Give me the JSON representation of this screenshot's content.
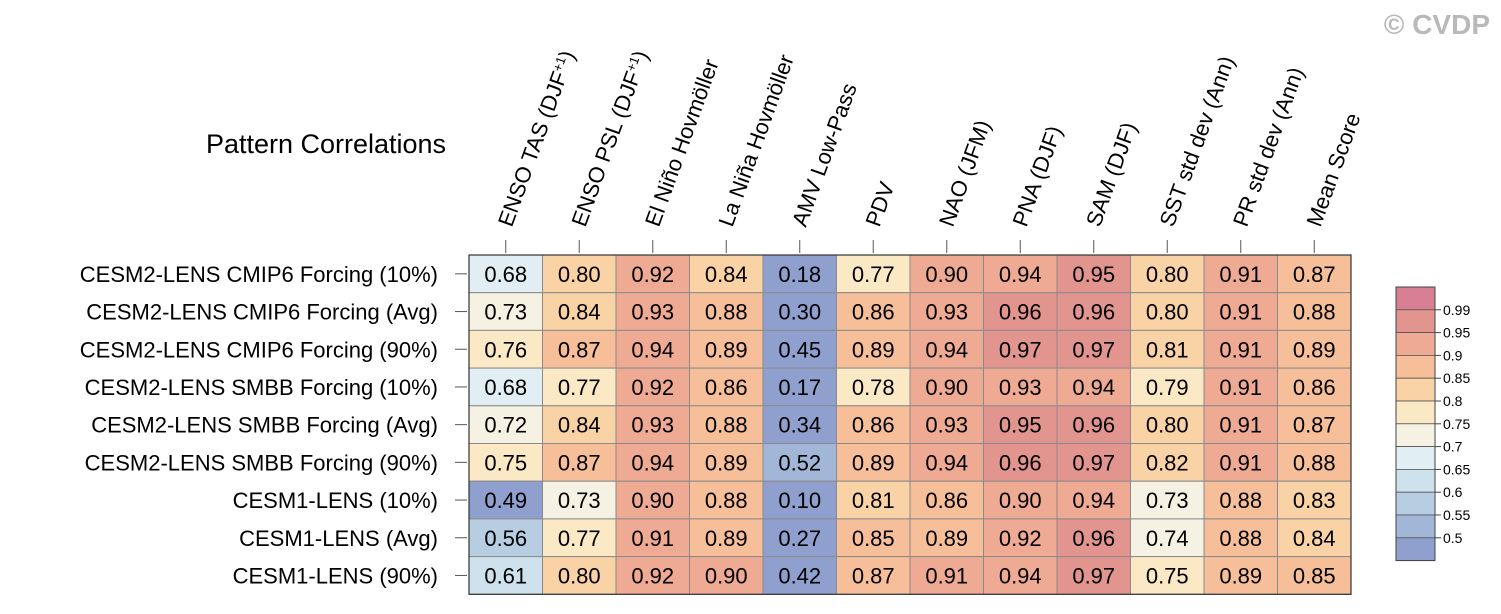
{
  "watermark": "© CVDP",
  "chart_data": {
    "type": "heatmap",
    "title": "Pattern Correlations",
    "columns": [
      "ENSO TAS (DJF+1)",
      "ENSO PSL (DJF+1)",
      "El Niño Hovmöller",
      "La Niña Hovmöller",
      "AMV Low-Pass",
      "PDV",
      "NAO (JFM)",
      "PNA (DJF)",
      "SAM (DJF)",
      "SST std dev (Ann)",
      "PR std dev (Ann)",
      "Mean Score"
    ],
    "rows": [
      "CESM2-LENS CMIP6 Forcing (10%)",
      "CESM2-LENS CMIP6 Forcing (Avg)",
      "CESM2-LENS CMIP6 Forcing (90%)",
      "CESM2-LENS SMBB Forcing (10%)",
      "CESM2-LENS SMBB Forcing (Avg)",
      "CESM2-LENS SMBB Forcing (90%)",
      "CESM1-LENS (10%)",
      "CESM1-LENS (Avg)",
      "CESM1-LENS (90%)"
    ],
    "values": [
      [
        "0.68",
        "0.80",
        "0.92",
        "0.84",
        "0.18",
        "0.77",
        "0.90",
        "0.94",
        "0.95",
        "0.80",
        "0.91",
        "0.87"
      ],
      [
        "0.73",
        "0.84",
        "0.93",
        "0.88",
        "0.30",
        "0.86",
        "0.93",
        "0.96",
        "0.96",
        "0.80",
        "0.91",
        "0.88"
      ],
      [
        "0.76",
        "0.87",
        "0.94",
        "0.89",
        "0.45",
        "0.89",
        "0.94",
        "0.97",
        "0.97",
        "0.81",
        "0.91",
        "0.89"
      ],
      [
        "0.68",
        "0.77",
        "0.92",
        "0.86",
        "0.17",
        "0.78",
        "0.90",
        "0.93",
        "0.94",
        "0.79",
        "0.91",
        "0.86"
      ],
      [
        "0.72",
        "0.84",
        "0.93",
        "0.88",
        "0.34",
        "0.86",
        "0.93",
        "0.95",
        "0.96",
        "0.80",
        "0.91",
        "0.87"
      ],
      [
        "0.75",
        "0.87",
        "0.94",
        "0.89",
        "0.52",
        "0.89",
        "0.94",
        "0.96",
        "0.97",
        "0.82",
        "0.91",
        "0.88"
      ],
      [
        "0.49",
        "0.73",
        "0.90",
        "0.88",
        "0.10",
        "0.81",
        "0.86",
        "0.90",
        "0.94",
        "0.73",
        "0.88",
        "0.83"
      ],
      [
        "0.56",
        "0.77",
        "0.91",
        "0.89",
        "0.27",
        "0.85",
        "0.89",
        "0.92",
        "0.96",
        "0.74",
        "0.88",
        "0.84"
      ],
      [
        "0.61",
        "0.80",
        "0.92",
        "0.90",
        "0.42",
        "0.87",
        "0.91",
        "0.94",
        "0.97",
        "0.75",
        "0.89",
        "0.85"
      ]
    ],
    "colorbar": {
      "levels": [
        "0.99",
        "0.95",
        "0.9",
        "0.85",
        "0.8",
        "0.75",
        "0.7",
        "0.65",
        "0.6",
        "0.55",
        "0.5"
      ],
      "bins": [
        {
          "min": 0.99,
          "color": "#d97f93"
        },
        {
          "min": 0.95,
          "color": "#e2958e"
        },
        {
          "min": 0.9,
          "color": "#efaa94"
        },
        {
          "min": 0.85,
          "color": "#f6bf9a"
        },
        {
          "min": 0.8,
          "color": "#f9d2a5"
        },
        {
          "min": 0.75,
          "color": "#fbe8c4"
        },
        {
          "min": 0.7,
          "color": "#f5f2e3"
        },
        {
          "min": 0.65,
          "color": "#e1eef3"
        },
        {
          "min": 0.6,
          "color": "#cde2ec"
        },
        {
          "min": 0.55,
          "color": "#b6cde2"
        },
        {
          "min": 0.5,
          "color": "#a2b6d8"
        },
        {
          "min": -1.0,
          "color": "#8fa0cf"
        }
      ]
    }
  }
}
